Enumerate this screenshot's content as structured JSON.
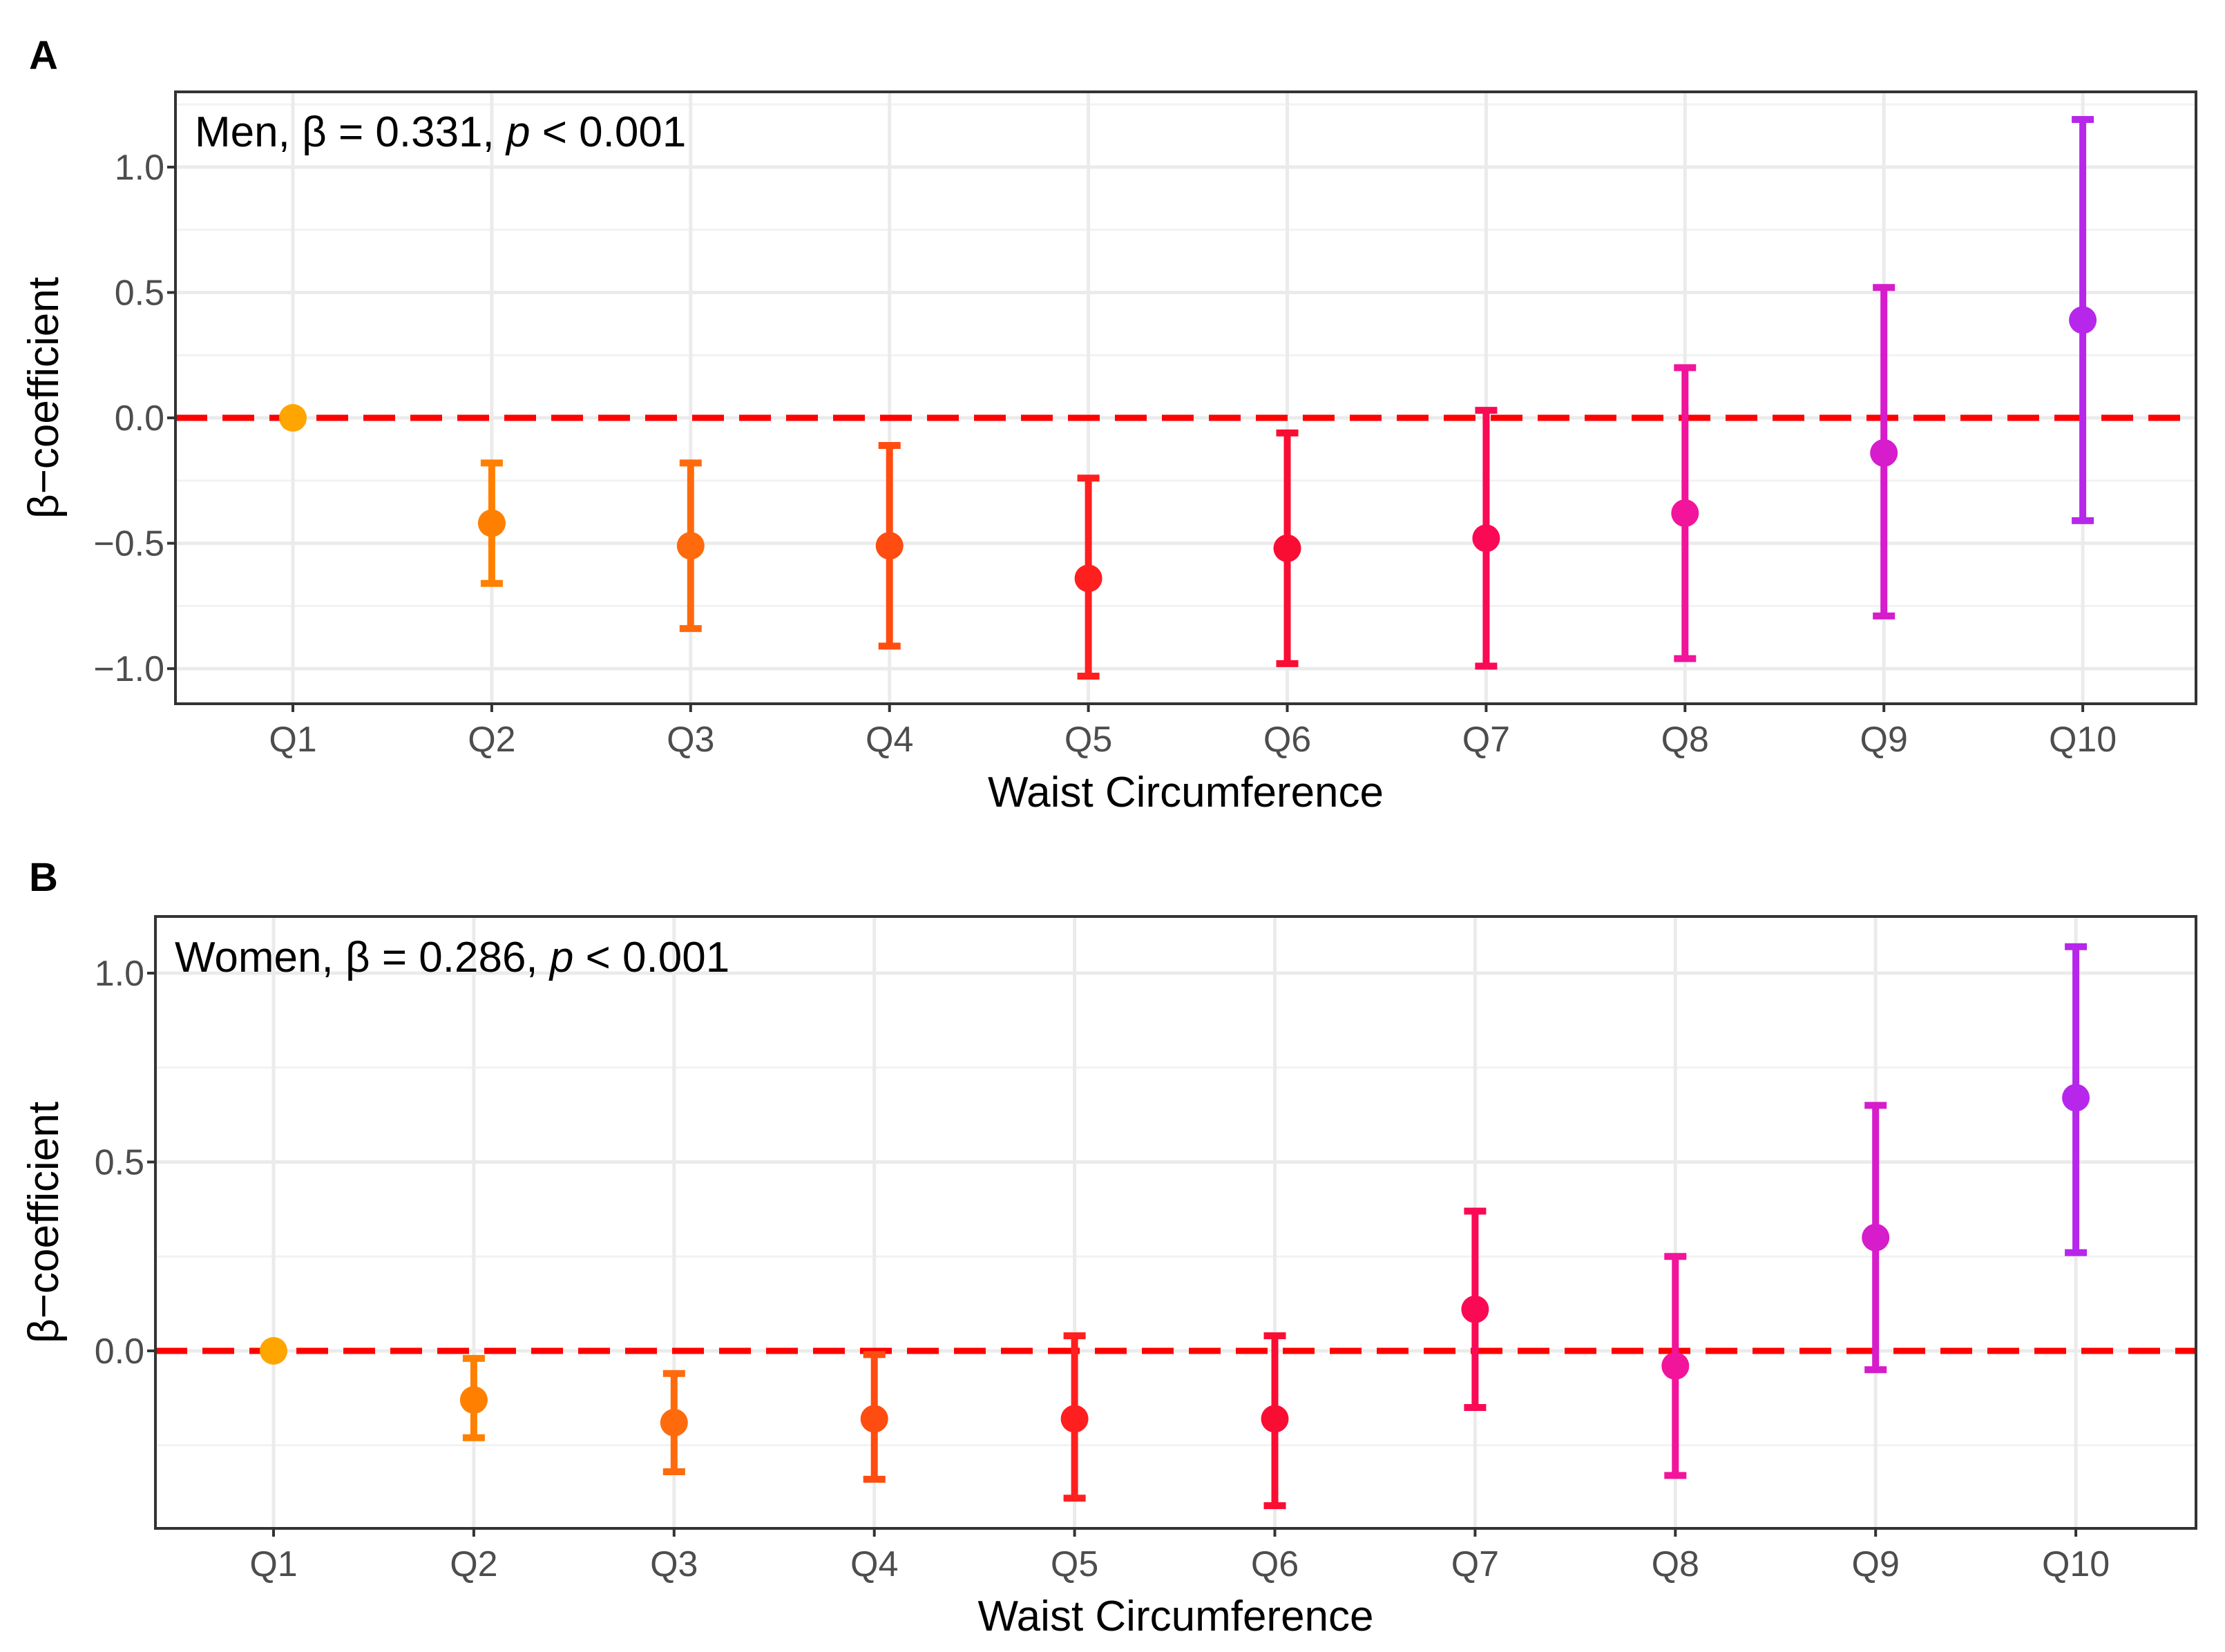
{
  "chart_data": [
    {
      "type": "scatter",
      "subtype": "point-errorbar",
      "panel_label": "A",
      "annotation": {
        "group": "Men",
        "beta_text": "β = 0.331",
        "p_label": "p",
        "p_text": "< 0.001"
      },
      "xlabel": "Waist Circumference",
      "ylabel": "β−coefficient",
      "categories": [
        "Q1",
        "Q2",
        "Q3",
        "Q4",
        "Q5",
        "Q6",
        "Q7",
        "Q8",
        "Q9",
        "Q10"
      ],
      "values": [
        0,
        -0.42,
        -0.51,
        -0.51,
        -0.64,
        -0.52,
        -0.48,
        -0.38,
        -0.14,
        0.39
      ],
      "lower": [
        0,
        -0.66,
        -0.84,
        -0.91,
        -1.03,
        -0.98,
        -0.99,
        -0.96,
        -0.79,
        -0.41
      ],
      "upper": [
        0,
        -0.18,
        -0.18,
        -0.11,
        -0.24,
        -0.06,
        0.03,
        0.2,
        0.52,
        1.19
      ],
      "colors": [
        "#FFA500",
        "#FF8000",
        "#FF6A0D",
        "#FF4C10",
        "#FF1F1F",
        "#FA0D33",
        "#FA0A55",
        "#F2149A",
        "#D61CCB",
        "#B627EB"
      ],
      "ylim": [
        -1.14,
        1.3
      ],
      "yticks": [
        1.0,
        0.5,
        0.0,
        -0.5,
        -1.0
      ],
      "ytick_labels": [
        "1.0",
        "0.5",
        "0.0",
        "−0.5",
        "−1.0"
      ],
      "minor_gridlines": [
        0.75,
        0.25,
        -0.25,
        -0.75,
        1.25
      ],
      "reference_line": {
        "y": 0,
        "style": "dashed",
        "color": "#FF0000"
      },
      "grid": true
    },
    {
      "type": "scatter",
      "subtype": "point-errorbar",
      "panel_label": "B",
      "annotation": {
        "group": "Women",
        "beta_text": "β = 0.286",
        "p_label": "p",
        "p_text": "< 0.001"
      },
      "xlabel": "Waist Circumference",
      "ylabel": "β−coefficient",
      "categories": [
        "Q1",
        "Q2",
        "Q3",
        "Q4",
        "Q5",
        "Q6",
        "Q7",
        "Q8",
        "Q9",
        "Q10"
      ],
      "values": [
        0,
        -0.13,
        -0.19,
        -0.18,
        -0.18,
        -0.18,
        0.11,
        -0.04,
        0.3,
        0.67
      ],
      "lower": [
        0,
        -0.23,
        -0.32,
        -0.34,
        -0.39,
        -0.41,
        -0.15,
        -0.33,
        -0.05,
        0.26
      ],
      "upper": [
        0,
        -0.02,
        -0.06,
        -0.01,
        0.04,
        0.04,
        0.37,
        0.25,
        0.65,
        1.07
      ],
      "colors": [
        "#FFA500",
        "#FF8000",
        "#FF6A0D",
        "#FF4C10",
        "#FF1F1F",
        "#FA0D33",
        "#FA0A55",
        "#F2149A",
        "#D61CCB",
        "#B627EB"
      ],
      "ylim": [
        -0.47,
        1.15
      ],
      "yticks": [
        1.0,
        0.5,
        0.0
      ],
      "ytick_labels": [
        "1.0",
        "0.5",
        "0.0"
      ],
      "minor_gridlines": [
        0.75,
        0.25,
        -0.25
      ],
      "reference_line": {
        "y": 0,
        "style": "dashed",
        "color": "#FF0000"
      },
      "grid": true
    }
  ]
}
